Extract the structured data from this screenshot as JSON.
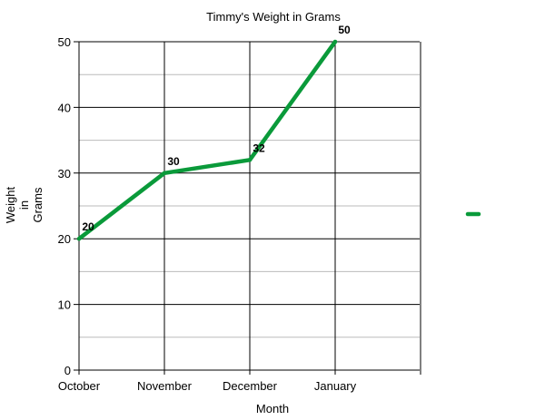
{
  "chart_data": {
    "type": "line",
    "title": "Timmy's Weight in Grams",
    "xlabel": "Month",
    "ylabel": [
      "Weight",
      "in",
      "Grams"
    ],
    "categories": [
      "October",
      "November",
      "December",
      "January"
    ],
    "series": [
      {
        "values": [
          20,
          30,
          32,
          50
        ],
        "color": "#0a9a3a"
      }
    ],
    "ylim": [
      0,
      50
    ],
    "yticks": [
      0,
      10,
      20,
      30,
      40,
      50
    ],
    "grid": true,
    "legend": "right"
  }
}
